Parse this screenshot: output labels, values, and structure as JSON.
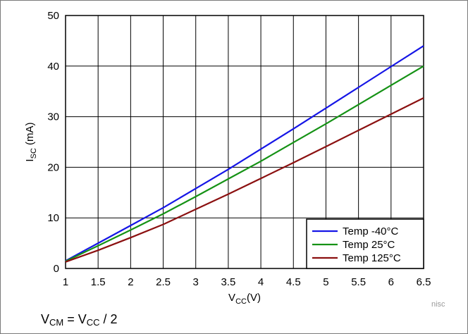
{
  "chart_data": {
    "type": "line",
    "xlabel": "V_CC(V)",
    "xlabel_main": "V",
    "xlabel_sub": "CC",
    "xlabel_suffix": "(V)",
    "ylabel": "I_SC (mA)",
    "ylabel_main": "I",
    "ylabel_sub": "SC",
    "ylabel_suffix": " (mA)",
    "xlim": [
      1,
      6.5
    ],
    "ylim": [
      0,
      50
    ],
    "x_ticks": [
      1,
      1.5,
      2,
      2.5,
      3,
      3.5,
      4,
      4.5,
      5,
      5.5,
      6,
      6.5
    ],
    "y_ticks": [
      0,
      10,
      20,
      30,
      40,
      50
    ],
    "grid": true,
    "legend_position": "bottom-right",
    "x": [
      1,
      1.5,
      2,
      2.5,
      3,
      3.5,
      4,
      4.5,
      5,
      5.5,
      6,
      6.5
    ],
    "series": [
      {
        "name": "Temp -40°C",
        "color": "#1515e6",
        "values": [
          1.5,
          5.0,
          8.5,
          12.0,
          15.8,
          19.6,
          23.6,
          27.6,
          31.7,
          35.8,
          39.9,
          44.0
        ]
      },
      {
        "name": "Temp 25°C",
        "color": "#159215",
        "values": [
          1.4,
          4.5,
          7.6,
          10.8,
          14.2,
          17.7,
          21.2,
          24.9,
          28.6,
          32.4,
          36.2,
          40.0
        ]
      },
      {
        "name": "Temp 125°C",
        "color": "#8b1010",
        "values": [
          1.3,
          3.6,
          6.1,
          8.7,
          11.7,
          14.7,
          17.8,
          20.9,
          24.1,
          27.3,
          30.5,
          33.7
        ]
      }
    ]
  },
  "footnote": {
    "v1": "V",
    "sub1": "CM",
    "mid": " = V",
    "sub2": "CC",
    "end": " / 2"
  },
  "watermark": "nisc"
}
